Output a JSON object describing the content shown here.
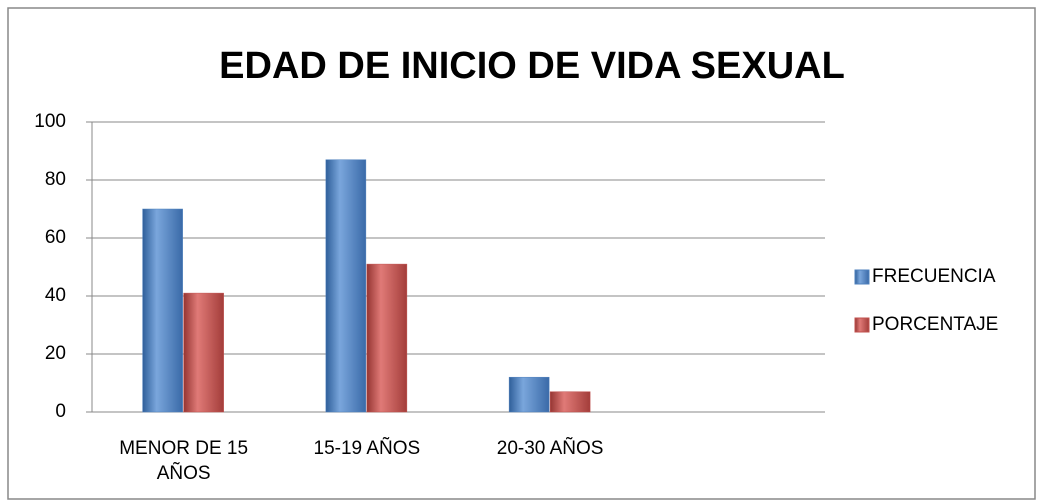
{
  "chart_data": {
    "type": "bar",
    "title": "EDAD DE INICIO DE VIDA SEXUAL",
    "categories": [
      "MENOR DE 15 AÑOS",
      "15-19 AÑOS",
      "20-30 AÑOS",
      null
    ],
    "series": [
      {
        "name": "FRECUENCIA",
        "color": "#4f81bd",
        "values": [
          70,
          87,
          12,
          null
        ]
      },
      {
        "name": "PORCENTAJE",
        "color": "#c0504d",
        "values": [
          41,
          51,
          7,
          null
        ]
      }
    ],
    "ylim": [
      0,
      100
    ],
    "yticks": [
      0,
      20,
      40,
      60,
      80,
      100
    ],
    "grid": true,
    "legend": "right"
  }
}
